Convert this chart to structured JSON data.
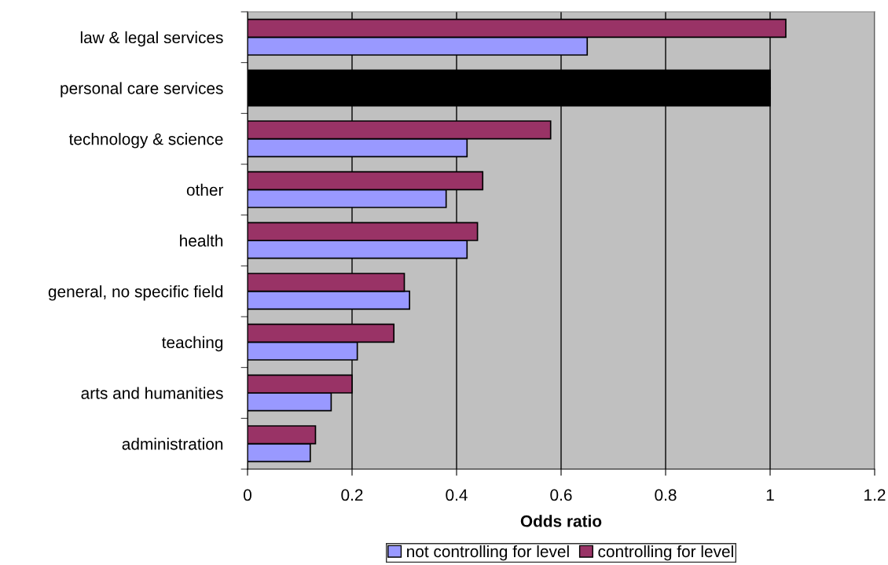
{
  "chart_data": {
    "type": "bar",
    "orientation": "horizontal",
    "xlabel": "Odds ratio",
    "categories": [
      "law & legal services",
      "personal care services",
      "technology & science",
      "other",
      "health",
      "general, no specific field",
      "teaching",
      "arts and humanities",
      "administration"
    ],
    "series": [
      {
        "name": "not controlling for level",
        "color": "#9999ff",
        "colors": [
          "#9999ff",
          "#000000",
          "#9999ff",
          "#9999ff",
          "#9999ff",
          "#9999ff",
          "#9999ff",
          "#9999ff",
          "#9999ff"
        ],
        "values": [
          0.65,
          1.0,
          0.42,
          0.38,
          0.42,
          0.31,
          0.21,
          0.16,
          0.12
        ]
      },
      {
        "name": "controlling for level",
        "color": "#993366",
        "colors": [
          "#993366",
          "#000000",
          "#993366",
          "#993366",
          "#993366",
          "#993366",
          "#993366",
          "#993366",
          "#993366"
        ],
        "values": [
          1.03,
          1.0,
          0.58,
          0.45,
          0.44,
          0.3,
          0.28,
          0.2,
          0.13
        ]
      }
    ],
    "xlim": [
      0,
      1.2
    ],
    "xticks": [
      0,
      0.2,
      0.4,
      0.6,
      0.8,
      1,
      1.2
    ],
    "grid": "x",
    "legend": "bottom"
  }
}
